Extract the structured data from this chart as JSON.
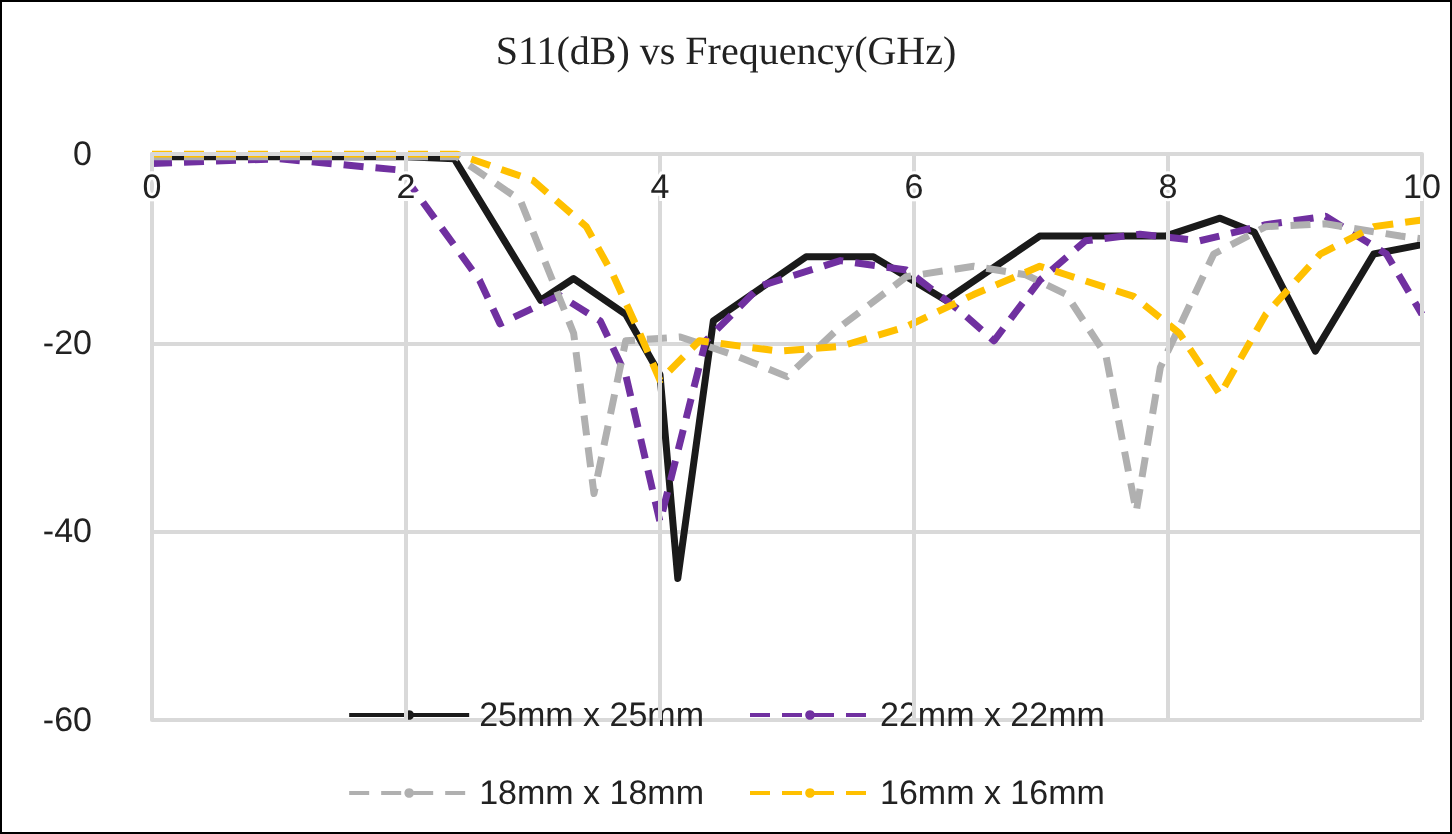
{
  "chart_data": {
    "type": "line",
    "title": "S11(dB) vs Frequency(GHz)",
    "xlim": [
      0,
      10
    ],
    "xticks": [
      0,
      2,
      4,
      6,
      8,
      10
    ],
    "ylim": [
      -60,
      0
    ],
    "yticks": [
      -60,
      -40,
      -20,
      0
    ],
    "grid": true,
    "legend": "bottom",
    "marker": "none",
    "series": [
      {
        "name": "25mm x 25mm",
        "color": "#1a1a1a",
        "line_style": "solid",
        "x": [
          0,
          1,
          2,
          2.38,
          3.06,
          3.32,
          3.73,
          4.0,
          4.14,
          4.42,
          5.15,
          5.68,
          6.25,
          6.99,
          7.98,
          8.41,
          8.68,
          9.16,
          9.62,
          10
        ],
        "values": [
          -0.3,
          -0.3,
          -0.3,
          -0.5,
          -15.5,
          -13.2,
          -17,
          -23.4,
          -45,
          -17.7,
          -10.9,
          -10.9,
          -15.5,
          -8.7,
          -8.7,
          -6.8,
          -8.3,
          -20.9,
          -10.6,
          -9.6
        ]
      },
      {
        "name": "22mm x 22mm",
        "color": "#7030a0",
        "line_style": "dashed",
        "x": [
          0,
          1,
          1.95,
          2.58,
          2.74,
          3.21,
          3.53,
          3.73,
          4.0,
          4.36,
          4.79,
          5.42,
          5.94,
          6.36,
          6.63,
          6.99,
          7.35,
          7.78,
          8.25,
          8.77,
          9.24,
          9.72,
          10
        ],
        "values": [
          -1,
          -0.5,
          -1.7,
          -13.4,
          -18,
          -15,
          -17.7,
          -23.4,
          -39,
          -19.8,
          -14,
          -11.3,
          -12.3,
          -16.6,
          -19.8,
          -13.4,
          -9.2,
          -8.5,
          -9.2,
          -7.5,
          -6.6,
          -10.6,
          -17
        ]
      },
      {
        "name": "18mm x 18mm",
        "color": "#b0b0b0",
        "line_style": "dashed",
        "x": [
          0,
          1,
          2.4,
          2.9,
          3.32,
          3.48,
          3.73,
          4.16,
          4.58,
          5.0,
          5.42,
          5.94,
          6.47,
          6.88,
          7.2,
          7.51,
          7.75,
          7.94,
          8.36,
          8.77,
          9.24,
          9.83,
          10
        ],
        "values": [
          -0.3,
          -0.3,
          -0.3,
          -4.9,
          -19,
          -36,
          -19.8,
          -19.4,
          -21.3,
          -23.6,
          -18.3,
          -13,
          -11.9,
          -12.8,
          -14.9,
          -21.3,
          -37.9,
          -22.6,
          -10.6,
          -7.7,
          -7.4,
          -8.7,
          -9
        ]
      },
      {
        "name": "16mm x 16mm",
        "color": "#ffc000",
        "line_style": "dashed",
        "x": [
          0,
          1,
          2.4,
          3.0,
          3.42,
          3.63,
          3.84,
          4.0,
          4.31,
          4.94,
          5.42,
          5.94,
          6.47,
          6.99,
          7.2,
          7.73,
          8.09,
          8.41,
          8.77,
          9.2,
          9.62,
          10
        ],
        "values": [
          0,
          0,
          0,
          -2.8,
          -7.7,
          -12.8,
          -19,
          -24,
          -19.8,
          -20.9,
          -20.4,
          -18.3,
          -14.9,
          -11.9,
          -12.8,
          -15.1,
          -19,
          -25.5,
          -17,
          -10.6,
          -7.7,
          -7
        ]
      }
    ]
  }
}
